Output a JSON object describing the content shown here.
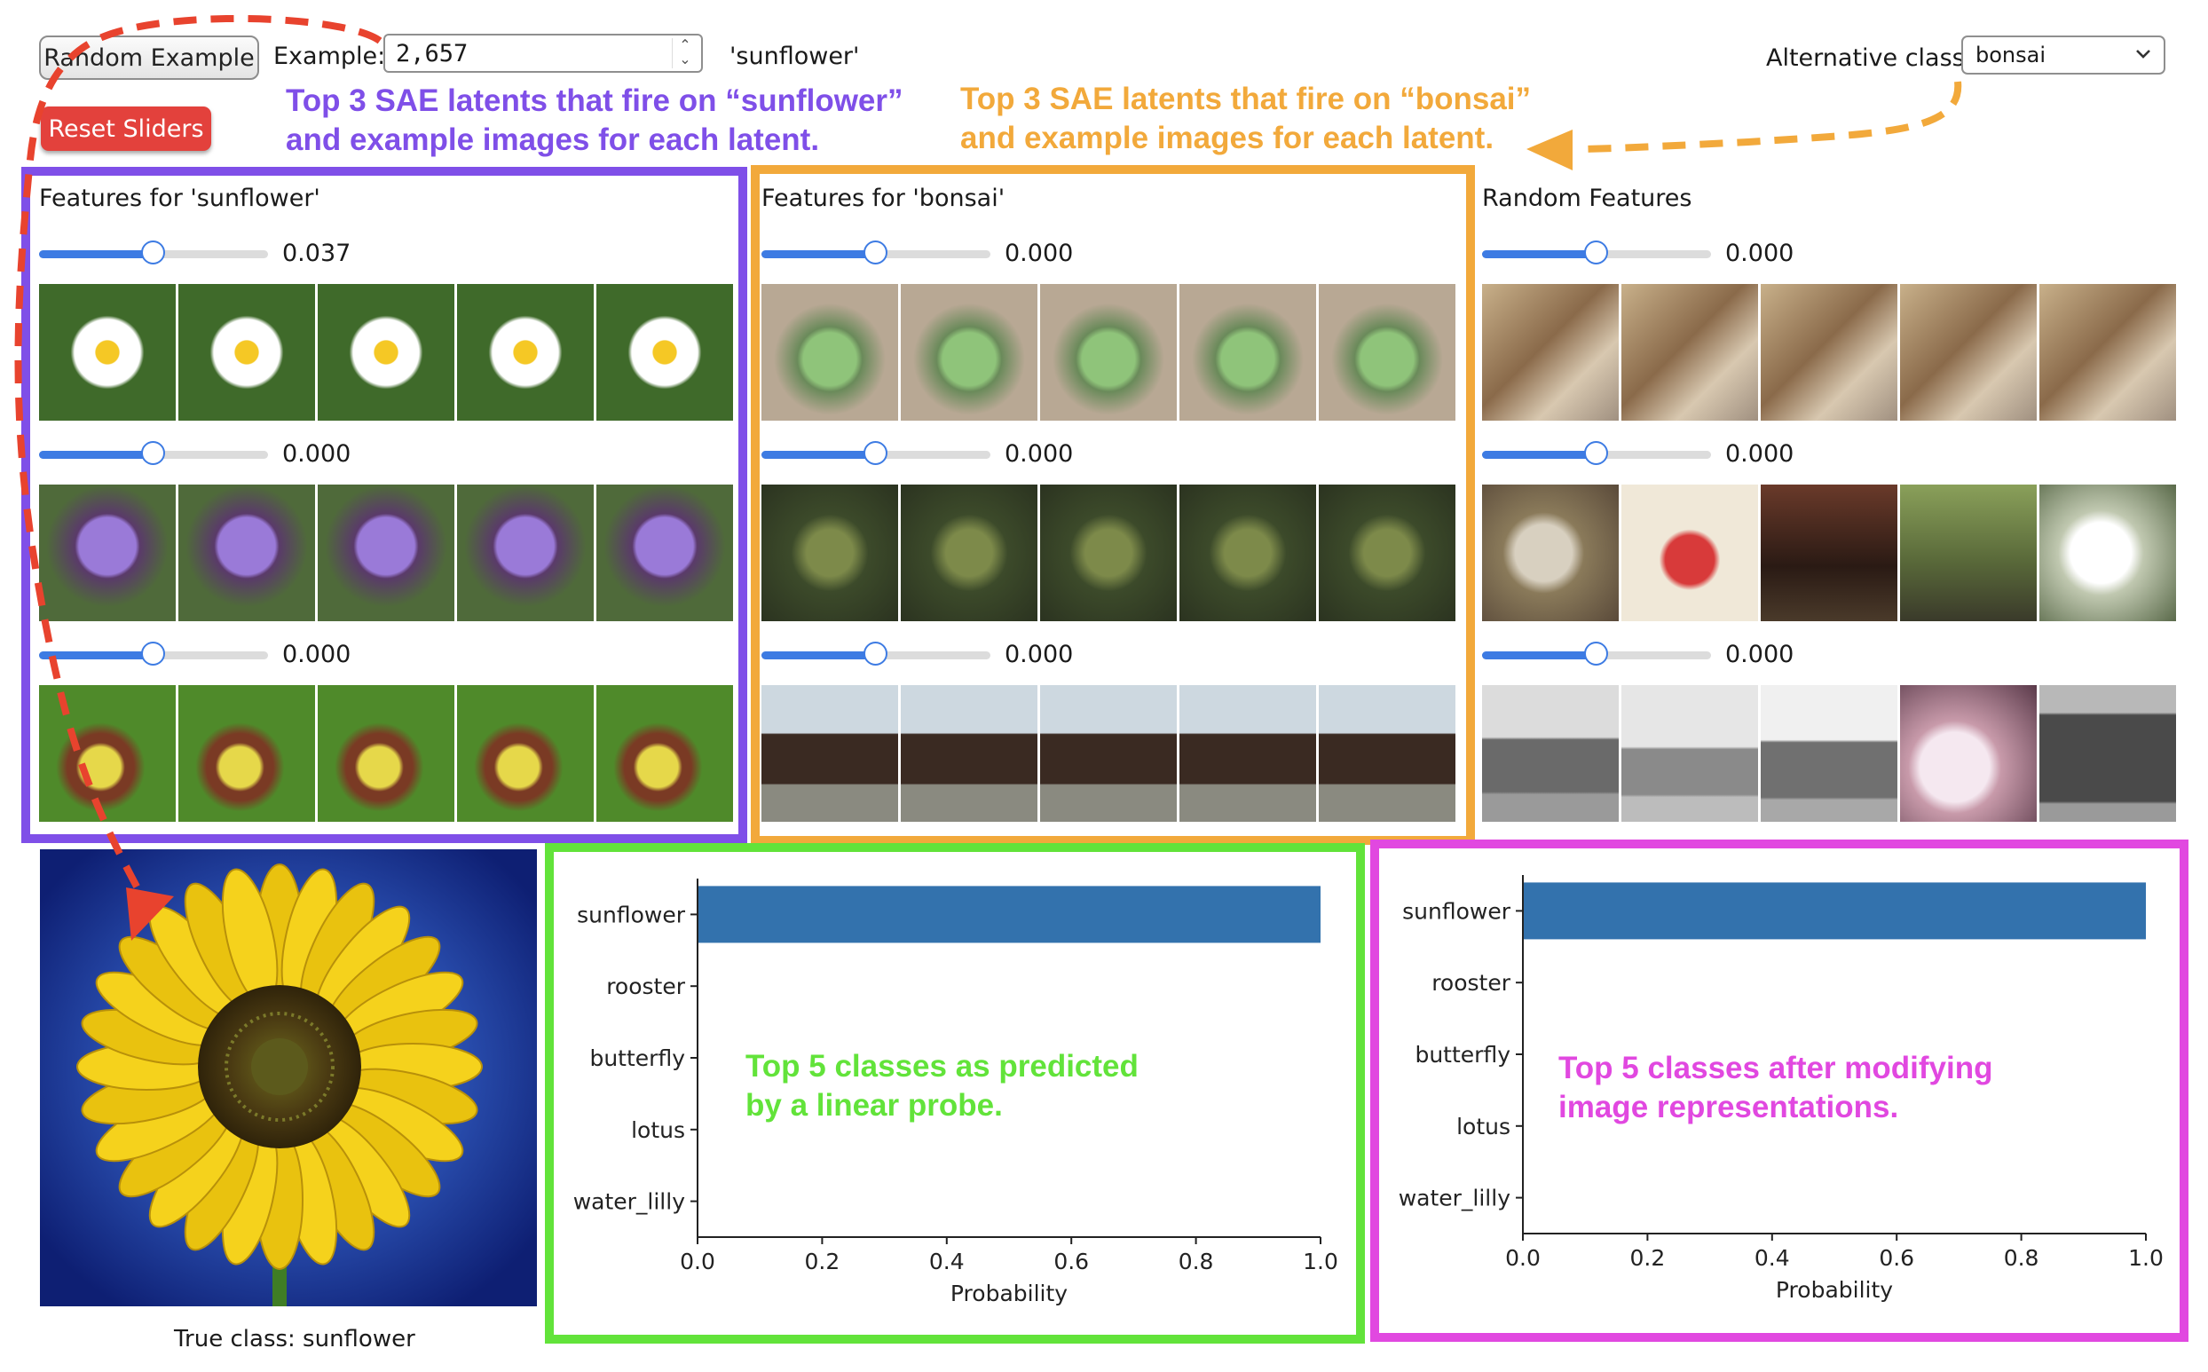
{
  "controls": {
    "random_button": "Random Example",
    "example_label": "Example:",
    "example_value": "2,657",
    "example_class": "'sunflower'",
    "reset_button": "Reset Sliders",
    "alt_class_label": "Alternative class:",
    "alt_class_value": "bonsai"
  },
  "annotations": {
    "sunflower_latents": "Top 3 SAE latents that fire on “sunflower”\nand example images for each latent.",
    "bonsai_latents": "Top 3 SAE latents that fire on “bonsai”\nand example images for each latent.",
    "linear_probe": "Top 5 classes as predicted\nby a linear probe.",
    "modified": "Top 5 classes after modifying\nimage representations."
  },
  "colors": {
    "purple": "#7f4fe8",
    "orange": "#f2a93b",
    "green": "#62e33a",
    "magenta": "#e148e0",
    "red_arrow": "#e8432e",
    "bar": "#3372ad",
    "slider": "#3d7be3"
  },
  "feature_columns": [
    {
      "title": "Features for 'sunflower'",
      "rows": [
        {
          "value": "0.037",
          "level": 0.5,
          "thumbs": [
            "daisy-photo",
            "daisy-photo",
            "daisy-photo",
            "daisy-photo",
            "daisy-photo"
          ]
        },
        {
          "value": "0.000",
          "level": 0.5,
          "thumbs": [
            "thistle-photo",
            "thistle-photo",
            "thistle-photo",
            "thistle-photo",
            "thistle-photo"
          ]
        },
        {
          "value": "0.000",
          "level": 0.5,
          "thumbs": [
            "orchid-photo",
            "orchid-photo",
            "orchid-photo",
            "orchid-photo",
            "orchid-photo"
          ]
        }
      ]
    },
    {
      "title": "Features for 'bonsai'",
      "rows": [
        {
          "value": "0.000",
          "level": 0.5,
          "thumbs": [
            "succulent-photo",
            "succulent-photo",
            "succulent-photo",
            "succulent-photo",
            "succulent-photo"
          ]
        },
        {
          "value": "0.000",
          "level": 0.5,
          "thumbs": [
            "miniature-photo",
            "miniature-photo",
            "miniature-photo",
            "miniature-photo",
            "miniature-photo"
          ]
        },
        {
          "value": "0.000",
          "level": 0.5,
          "thumbs": [
            "temple-photo",
            "temple-photo",
            "temple-photo",
            "temple-photo",
            "temple-photo"
          ]
        }
      ]
    },
    {
      "title": "Random Features",
      "rows": [
        {
          "value": "0.000",
          "level": 0.5,
          "thumbs": [
            "foil-photo",
            "foil-photo",
            "foil-photo",
            "foil-photo",
            "foil-photo"
          ]
        },
        {
          "value": "0.000",
          "level": 0.5,
          "thumbs": [
            "dog-photo",
            "scale-photo",
            "crowd-photo",
            "birds-photo",
            "poodle-photo"
          ]
        },
        {
          "value": "0.000",
          "level": 0.5,
          "thumbs": [
            "cottage-photo",
            "house-photo",
            "barn-photo",
            "wedding-photo",
            "shop-photo"
          ]
        }
      ]
    }
  ],
  "true_class": "True class: sunflower",
  "chart_data": [
    {
      "type": "bar",
      "orientation": "horizontal",
      "categories": [
        "sunflower",
        "rooster",
        "butterfly",
        "lotus",
        "water_lilly"
      ],
      "values": [
        1.0,
        0.0,
        0.0,
        0.0,
        0.0
      ],
      "xlabel": "Probability",
      "xticks": [
        "0.0",
        "0.2",
        "0.4",
        "0.6",
        "0.8",
        "1.0"
      ],
      "xlim": [
        0,
        1
      ]
    },
    {
      "type": "bar",
      "orientation": "horizontal",
      "categories": [
        "sunflower",
        "rooster",
        "butterfly",
        "lotus",
        "water_lilly"
      ],
      "values": [
        1.0,
        0.0,
        0.0,
        0.0,
        0.0
      ],
      "xlabel": "Probability",
      "xticks": [
        "0.0",
        "0.2",
        "0.4",
        "0.6",
        "0.8",
        "1.0"
      ],
      "xlim": [
        0,
        1
      ]
    }
  ]
}
